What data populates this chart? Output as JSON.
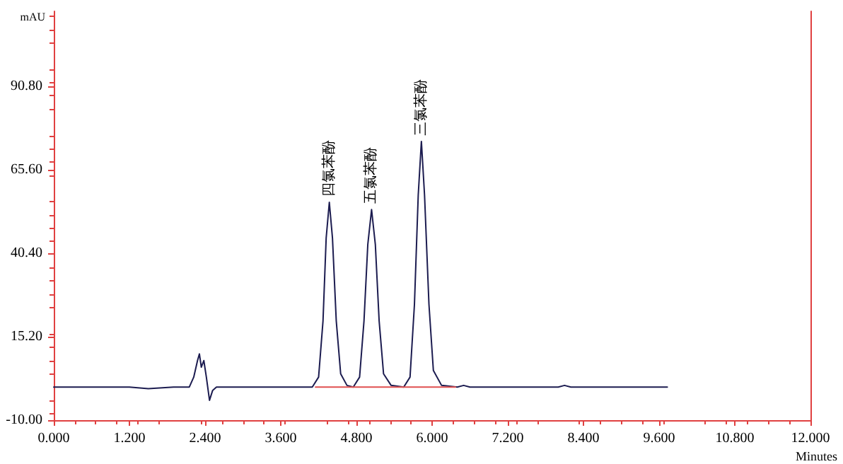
{
  "chart_data": {
    "type": "line",
    "ylabel": "mAU",
    "xlabel": "Minutes",
    "xlim": [
      0,
      12
    ],
    "xticks": [
      {
        "value": 0,
        "label": "0.000"
      },
      {
        "value": 1.2,
        "label": "1.200"
      },
      {
        "value": 2.4,
        "label": "2.400"
      },
      {
        "value": 3.6,
        "label": "3.600"
      },
      {
        "value": 4.8,
        "label": "4.800"
      },
      {
        "value": 6,
        "label": "6.000"
      },
      {
        "value": 7.2,
        "label": "7.200"
      },
      {
        "value": 8.4,
        "label": "8.400"
      },
      {
        "value": 9.6,
        "label": "9.600"
      },
      {
        "value": 10.8,
        "label": "10.800"
      },
      {
        "value": 12,
        "label": "12.000"
      }
    ],
    "ylim": [
      -10,
      113.5
    ],
    "yticks": [
      {
        "value": -10,
        "label": "-10.00"
      },
      {
        "value": 15.2,
        "label": "15.20"
      },
      {
        "value": 40.4,
        "label": "40.40"
      },
      {
        "value": 65.6,
        "label": "65.60"
      },
      {
        "value": 90.8,
        "label": "90.80"
      }
    ],
    "grid": false,
    "marker": "none",
    "line_style": "solid",
    "series": [
      {
        "color": "#1c1c50",
        "x": [
          0,
          1.2,
          1.5,
          1.9,
          2.15,
          2.22,
          2.28,
          2.31,
          2.34,
          2.38,
          2.42,
          2.47,
          2.52,
          2.58,
          3.0,
          3.5,
          4.1,
          4.2,
          4.27,
          4.32,
          4.37,
          4.42,
          4.48,
          4.55,
          4.65,
          4.75,
          4.85,
          4.92,
          4.98,
          5.04,
          5.1,
          5.16,
          5.23,
          5.35,
          5.55,
          5.65,
          5.72,
          5.78,
          5.83,
          5.88,
          5.95,
          6.02,
          6.15,
          6.4,
          6.5,
          6.6,
          8.0,
          8.1,
          8.2,
          9.73
        ],
        "values": [
          0,
          0,
          -0.5,
          0,
          0,
          3,
          8,
          10,
          6,
          8,
          3,
          -4,
          -1,
          0,
          0,
          0,
          0,
          3,
          20,
          45,
          55.8,
          45,
          20,
          4,
          0.5,
          0,
          3,
          20,
          43,
          53.6,
          43,
          20,
          4,
          0.5,
          0,
          3,
          25,
          58,
          74.2,
          58,
          25,
          5,
          0.5,
          0,
          0.5,
          0,
          0,
          0.5,
          0,
          0
        ]
      },
      {
        "color": "#e05050",
        "x": [
          4.15,
          6.37
        ],
        "values": [
          0,
          0
        ]
      }
    ],
    "annotations": [
      {
        "text": "四氯苯酚",
        "x": 4.37,
        "y": 55.8
      },
      {
        "text": "五氯苯酚",
        "x": 5.04,
        "y": 53.6
      },
      {
        "text": "三氯苯酚",
        "x": 5.83,
        "y": 74.2
      }
    ]
  }
}
